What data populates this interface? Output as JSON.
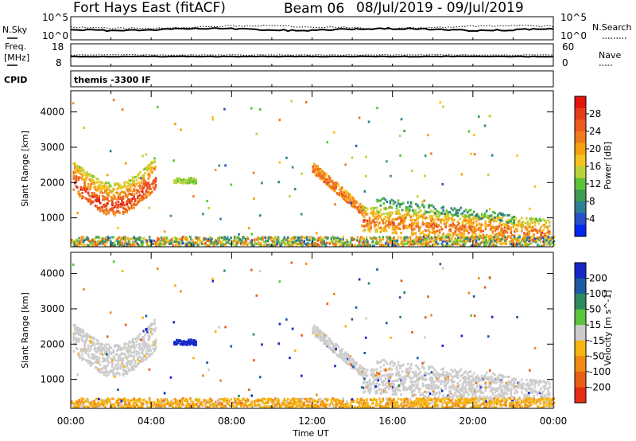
{
  "header": {
    "station": "Fort Hays East (fitACF)",
    "beam": "Beam 06",
    "date_range": "08/Jul/2019 - 09/Jul/2019"
  },
  "summary": {
    "nsky_label": "N.Sky",
    "nsearch_label": "N.Search",
    "nsky_ticks": [
      "10^5",
      "10^0"
    ],
    "nsearch_ticks": [
      "10^5",
      "10^0"
    ],
    "freq_label_1": "Freq.",
    "freq_label_2": "[MHz]",
    "freq_ticks": [
      "18",
      "8"
    ],
    "nave_label": "Nave",
    "nave_ticks": [
      "60",
      "0"
    ],
    "cpid_label": "CPID",
    "cpid_value": "themis -3300 IF"
  },
  "power_panel": {
    "ylabel": "Slant Range [km]",
    "colorbar_label": "Power [dB]",
    "colorbar_ticks": [
      "28",
      "24",
      "20",
      "16",
      "12",
      "8",
      "4"
    ],
    "colors": [
      "#0028f0",
      "#2850c8",
      "#2e7e96",
      "#3f9a52",
      "#5cc436",
      "#bcd23c",
      "#f5c31e",
      "#f7a010",
      "#f07a1c",
      "#ec5a1e",
      "#e63c1c",
      "#e8140c"
    ]
  },
  "velocity_panel": {
    "ylabel": "Slant Range [km]",
    "colorbar_label": "Velocity [m s^-1]",
    "colorbar_ticks": [
      "200",
      "100",
      "50",
      "15",
      "-15",
      "-50",
      "-100",
      "-200"
    ],
    "colors": [
      "#1428c8",
      "#1e5aa0",
      "#2e8a5e",
      "#5cc43c",
      "#cccccc",
      "#f5b40e",
      "#f08a14",
      "#ea5e18",
      "#e62c14"
    ]
  },
  "xaxis": {
    "label": "Time UT",
    "ticks": [
      "00:00",
      "04:00",
      "08:00",
      "12:00",
      "16:00",
      "20:00",
      "00:00"
    ]
  },
  "chart_data": [
    {
      "type": "heatmap",
      "title": "Power",
      "xlabel": "Time UT",
      "ylabel": "Slant Range [km]",
      "x_range_hours": [
        0,
        24
      ],
      "ylim": [
        180,
        4600
      ],
      "colorbar": "Power [dB]",
      "colorbar_range": [
        0,
        32
      ],
      "features": [
        {
          "t_start": 0.1,
          "t_end": 4.2,
          "range_min": 1200,
          "range_max": 3000,
          "power_db": [
            12,
            28
          ]
        },
        {
          "t_start": 5.1,
          "t_end": 6.2,
          "range_min": 1950,
          "range_max": 2150,
          "power_db": [
            10,
            14
          ]
        },
        {
          "t_start": 12.0,
          "t_end": 23.8,
          "range_min": 500,
          "range_max": 2500,
          "power_db": [
            8,
            26
          ]
        },
        {
          "t_start": 0.0,
          "t_end": 24.0,
          "range_min": 180,
          "range_max": 450,
          "power_db": [
            4,
            24
          ]
        }
      ]
    },
    {
      "type": "heatmap",
      "title": "Velocity",
      "xlabel": "Time UT",
      "ylabel": "Slant Range [km]",
      "x_range_hours": [
        0,
        24
      ],
      "ylim": [
        180,
        4600
      ],
      "colorbar": "Velocity [m s^-1]",
      "colorbar_range": [
        -200,
        200
      ],
      "features": [
        {
          "t_start": 1.0,
          "t_end": 3.8,
          "range_min": 2200,
          "range_max": 3000,
          "velocity": 200
        },
        {
          "t_start": 5.0,
          "t_end": 6.2,
          "range_min": 1950,
          "range_max": 2150,
          "velocity": 200
        },
        {
          "t_start": 0.2,
          "t_end": 4.2,
          "range_min": 1300,
          "range_max": 2600,
          "velocity": 0
        },
        {
          "t_start": 12.0,
          "t_end": 23.8,
          "range_min": 500,
          "range_max": 2500,
          "velocity": 0
        },
        {
          "t_start": 0.0,
          "t_end": 24.0,
          "range_min": 180,
          "range_max": 500,
          "velocity": -40
        }
      ]
    }
  ]
}
